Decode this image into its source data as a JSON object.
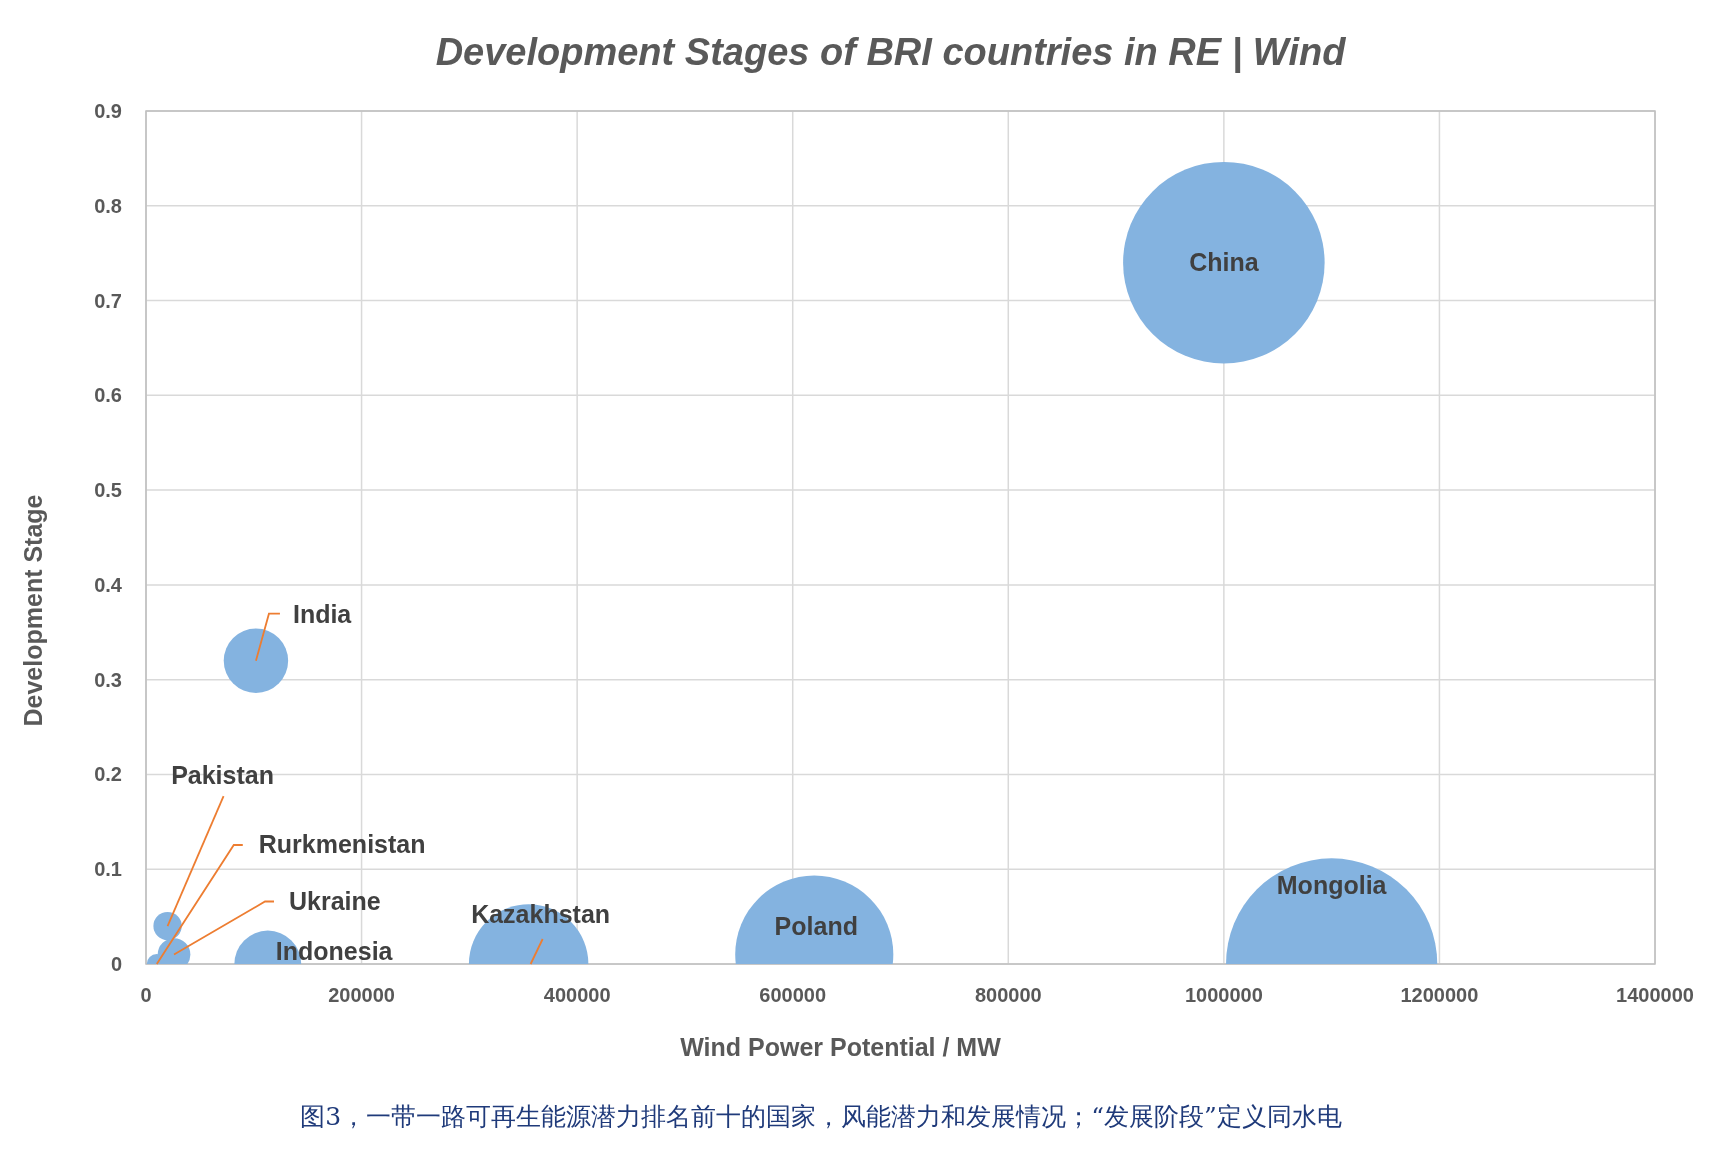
{
  "chart_data": {
    "type": "bubble",
    "title": "Development Stages of BRI countries in RE | Wind",
    "xlabel": "Wind Power Potential / MW",
    "ylabel": "Development Stage",
    "xlim": [
      0,
      1400000
    ],
    "xticks": [
      0,
      200000,
      400000,
      600000,
      800000,
      1000000,
      1200000,
      1400000
    ],
    "ylim": [
      0,
      0.9
    ],
    "yticks": [
      0,
      0.1,
      0.2,
      0.3,
      0.4,
      0.5,
      0.6,
      0.7,
      0.8,
      0.9
    ],
    "grid": true,
    "legend": false,
    "series": [
      {
        "name": "China",
        "color": "#84b3e0",
        "x": [
          1000000
        ],
        "values": [
          0.74
        ],
        "sizes": [
          0.91
        ]
      },
      {
        "name": "Mongolia",
        "color": "#84b3e0",
        "x": [
          1100000
        ],
        "values": [
          0
        ],
        "sizes": [
          1
        ]
      },
      {
        "name": "Poland",
        "color": "#84b3e0",
        "x": [
          620000
        ],
        "values": [
          0.01
        ],
        "sizes": [
          0.56
        ]
      },
      {
        "name": "Kazakhstan",
        "color": "#84b3e0",
        "x": [
          355000
        ],
        "values": [
          0
        ],
        "sizes": [
          0.32
        ]
      },
      {
        "name": "Indonesia",
        "color": "#84b3e0",
        "x": [
          113000
        ],
        "values": [
          0
        ],
        "sizes": [
          0.1
        ]
      },
      {
        "name": "India",
        "color": "#84b3e0",
        "x": [
          102000
        ],
        "values": [
          0.32
        ],
        "sizes": [
          0.093
        ]
      },
      {
        "name": "Pakistan",
        "color": "#84b3e0",
        "x": [
          20000
        ],
        "values": [
          0.04
        ],
        "sizes": [
          0.018
        ]
      },
      {
        "name": "Rurkmenistan",
        "color": "#84b3e0",
        "x": [
          10000
        ],
        "values": [
          0
        ],
        "sizes": [
          0.009
        ]
      },
      {
        "name": "Ukraine",
        "color": "#84b3e0",
        "x": [
          26000
        ],
        "values": [
          0.01
        ],
        "sizes": [
          0.024
        ]
      }
    ],
    "annotations": [
      "图3，一带一路可再生能源潜力排名前十的国家，风能潜力和发展情况；“发展阶段”定义同水电"
    ]
  }
}
